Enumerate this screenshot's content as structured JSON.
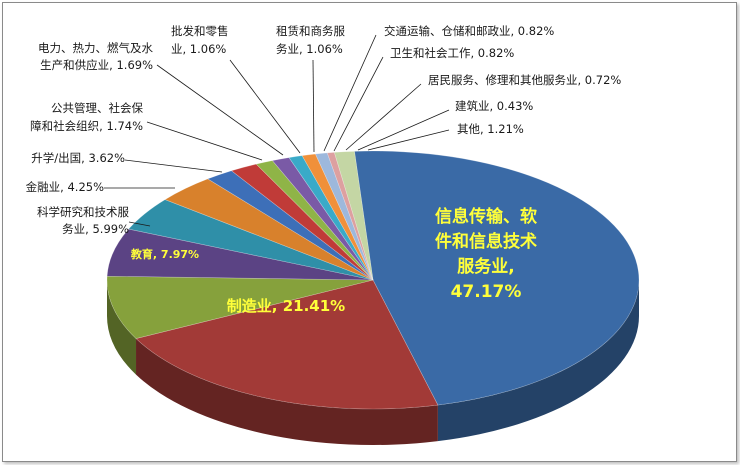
{
  "chart_data": {
    "type": "pie",
    "title": "",
    "slices": [
      {
        "label": "信息传输、软件和信息技术服务业",
        "value": 47.17,
        "color": "#3a6aa6",
        "display": [
          "信息传输、软",
          "件和信息技术",
          "服务业,",
          "47.17%"
        ]
      },
      {
        "label": "制造业",
        "value": 21.41,
        "color": "#a23a37",
        "display": [
          "制造业, 21.41%"
        ]
      },
      {
        "label": "教育",
        "value": 7.97,
        "color": "#86a13c",
        "display": [
          "教育, 7.97%"
        ]
      },
      {
        "label": "科学研究和技术服务业",
        "value": 5.99,
        "color": "#5b4384",
        "display": [
          "科学研究和技术服",
          "务业, 5.99%"
        ]
      },
      {
        "label": "金融业",
        "value": 4.25,
        "color": "#2f8fa8",
        "display": [
          "金融业, 4.25%"
        ]
      },
      {
        "label": "升学/出国",
        "value": 3.62,
        "color": "#d8812c",
        "display": [
          "升学/出国, 3.62%"
        ]
      },
      {
        "label": "公共管理、社会保障和社会组织",
        "value": 1.74,
        "color": "#3d6fb8",
        "display": [
          "公共管理、社会保",
          "障和社会组织, 1.74%"
        ]
      },
      {
        "label": "电力、热力、燃气及水生产和供应业",
        "value": 1.69,
        "color": "#c03b38",
        "display": [
          "电力、热力、燃气及水",
          "生产和供应业, 1.69%"
        ]
      },
      {
        "label": "批发和零售业",
        "value": 1.06,
        "color": "#8fb447",
        "display": [
          "批发和零售",
          "业, 1.06%"
        ]
      },
      {
        "label": "租赁和商务服务业",
        "value": 1.06,
        "color": "#7a5aa6",
        "display": [
          "租赁和商务服",
          "务业, 1.06%"
        ]
      },
      {
        "label": "交通运输、仓储和邮政业",
        "value": 0.82,
        "color": "#3aaac8",
        "display": [
          "交通运输、仓储和邮政业, 0.82%"
        ]
      },
      {
        "label": "卫生和社会工作",
        "value": 0.82,
        "color": "#f0903a",
        "display": [
          "卫生和社会工作, 0.82%"
        ]
      },
      {
        "label": "居民服务、修理和其他服务业",
        "value": 0.72,
        "color": "#9db8dc",
        "display": [
          "居民服务、修理和其他服务业, 0.72%"
        ]
      },
      {
        "label": "建筑业",
        "value": 0.43,
        "color": "#dda0a0",
        "display": [
          "建筑业, 0.43%"
        ]
      },
      {
        "label": "其他",
        "value": 1.21,
        "color": "#c4d6a4",
        "display": [
          "其他, 1.21%"
        ]
      }
    ]
  }
}
